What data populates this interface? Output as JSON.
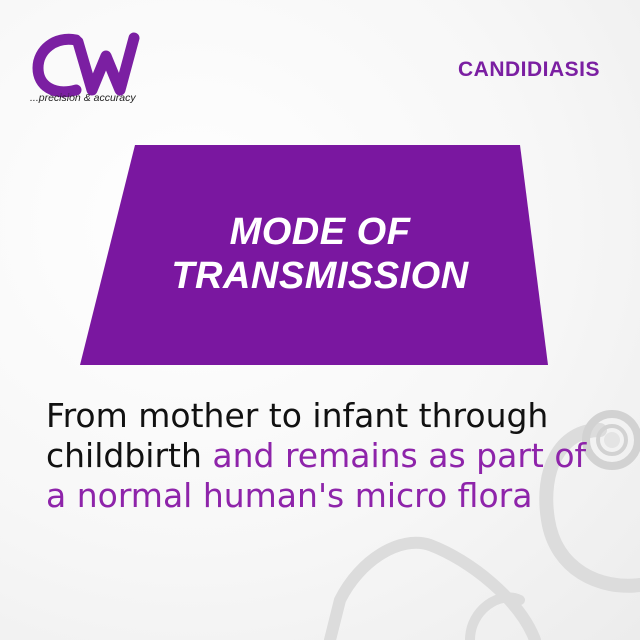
{
  "brand": {
    "logo_text": "CW",
    "tagline": "...precision & accuracy"
  },
  "topic": "CANDIDIASIS",
  "banner": {
    "line1": "MODE OF",
    "line2": "TRANSMISSION"
  },
  "body": {
    "black_part": "From mother to infant through childbirth",
    "purple_part": "and remains as part of a normal human's micro flora"
  },
  "colors": {
    "accent": "#7b1fa2",
    "banner": "#7a17a0",
    "text": "#111111"
  },
  "icons": [
    "stethoscope-icon"
  ]
}
